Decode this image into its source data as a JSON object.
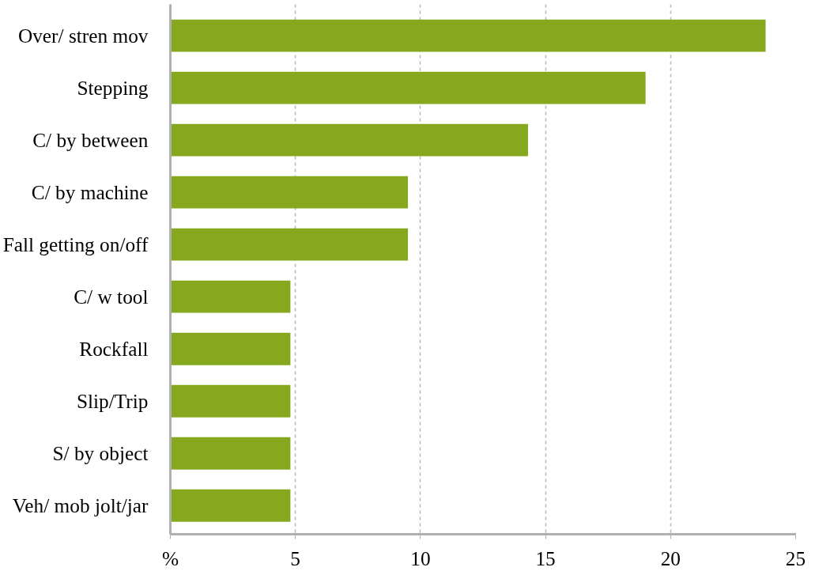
{
  "chart_data": {
    "type": "bar",
    "orientation": "horizontal",
    "categories": [
      "Over/ stren mov",
      "Stepping",
      "C/ by between",
      "C/ by machine",
      "Fall getting on/off",
      "C/ w tool",
      "Rockfall",
      "Slip/Trip",
      "S/ by object",
      "Veh/ mob jolt/jar"
    ],
    "values": [
      23.8,
      19.0,
      14.3,
      9.5,
      9.5,
      4.8,
      4.8,
      4.8,
      4.8,
      4.8
    ],
    "color": "#86a81e",
    "xlim": [
      0,
      25
    ],
    "xticks": [
      {
        "value": 0,
        "label": "%"
      },
      5,
      10,
      15,
      20,
      25
    ],
    "grid": "x"
  }
}
